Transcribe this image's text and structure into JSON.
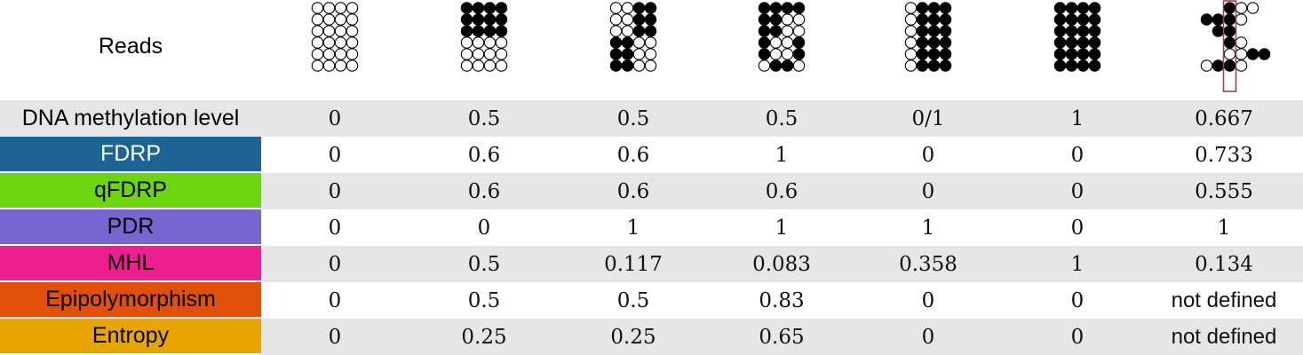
{
  "reads_label": "Reads",
  "colors": {
    "fdrp": "#1b6494",
    "qfdrp": "#6dd410",
    "pdr": "#7766d0",
    "mhl": "#ee1f8e",
    "epipolymorphism": "#e05008",
    "entropy": "#e8a400",
    "highlight": "#9e3a6a",
    "shade": "#e6e6e6"
  },
  "patterns": [
    {
      "reads": [
        "0000",
        "0000",
        "0000",
        "0000",
        "0000",
        "0000"
      ]
    },
    {
      "reads": [
        "1111",
        "1111",
        "1111",
        "0000",
        "0000",
        "0000"
      ]
    },
    {
      "reads": [
        "0011",
        "0011",
        "0011",
        "1100",
        "1100",
        "1100"
      ]
    },
    {
      "reads": [
        "1111",
        "1100",
        "1100",
        "1001",
        "1001",
        "0110"
      ]
    },
    {
      "reads": [
        "0111",
        "0111",
        "0111",
        "0111",
        "0111",
        "0111"
      ]
    },
    {
      "reads": [
        "1111",
        "1111",
        "1111",
        "1111",
        "1111",
        "1111"
      ]
    },
    {
      "reads": [
        {
          "offset": 0,
          "cpgs": "100"
        },
        {
          "offset": -2,
          "cpgs": "1110"
        },
        {
          "offset": -1,
          "cpgs": "11"
        },
        {
          "offset": 0,
          "cpgs": "10"
        },
        {
          "offset": 0,
          "cpgs": "0011"
        },
        {
          "offset": -2,
          "cpgs": "0110"
        }
      ],
      "highlight_column": true
    }
  ],
  "rows": [
    {
      "label": "DNA methylation level",
      "values": [
        "0",
        "0.5",
        "0.5",
        "0.5",
        "0/1",
        "1",
        "0.667"
      ],
      "color": ""
    },
    {
      "label": "FDRP",
      "values": [
        "0",
        "0.6",
        "0.6",
        "1",
        "0",
        "0",
        "0.733"
      ],
      "color": "#1b6494",
      "text_color": "#ffffff"
    },
    {
      "label": "qFDRP",
      "values": [
        "0",
        "0.6",
        "0.6",
        "0.6",
        "0",
        "0",
        "0.555"
      ],
      "color": "#6dd410",
      "text_color": "#000000"
    },
    {
      "label": "PDR",
      "values": [
        "0",
        "0",
        "1",
        "1",
        "1",
        "0",
        "1"
      ],
      "color": "#7766d0",
      "text_color": "#000000"
    },
    {
      "label": "MHL",
      "values": [
        "0",
        "0.5",
        "0.117",
        "0.083",
        "0.358",
        "1",
        "0.134"
      ],
      "color": "#ee1f8e",
      "text_color": "#000000"
    },
    {
      "label": "Epipolymorphism",
      "values": [
        "0",
        "0.5",
        "0.5",
        "0.83",
        "0",
        "0",
        "not defined"
      ],
      "color": "#e05008",
      "text_color": "#000000"
    },
    {
      "label": "Entropy",
      "values": [
        "0",
        "0.25",
        "0.25",
        "0.65",
        "0",
        "0",
        "not defined"
      ],
      "color": "#e8a400",
      "text_color": "#000000"
    }
  ]
}
